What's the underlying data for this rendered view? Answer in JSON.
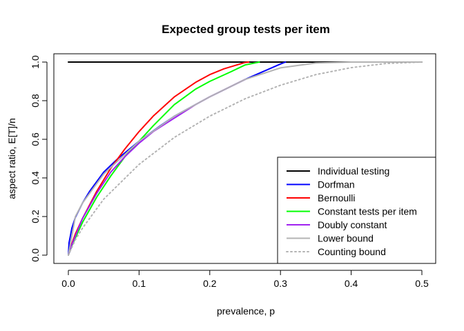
{
  "chart_data": {
    "type": "line",
    "title": "Expected group tests per item",
    "xlabel": "prevalence, p",
    "ylabel": "aspect ratio, E[T]/n",
    "xlim": [
      0,
      0.5
    ],
    "ylim": [
      0,
      1
    ],
    "xticks": [
      0.0,
      0.1,
      0.2,
      0.3,
      0.4,
      0.5
    ],
    "yticks": [
      0.0,
      0.2,
      0.4,
      0.6,
      0.8,
      1.0
    ],
    "xtick_labels": [
      "0.0",
      "0.1",
      "0.2",
      "0.3",
      "0.4",
      "0.5"
    ],
    "ytick_labels": [
      "0.0",
      "0.2",
      "0.4",
      "0.6",
      "0.8",
      "1.0"
    ],
    "grid": false,
    "legend_position": "bottom-right",
    "series": [
      {
        "name": "Individual testing",
        "color": "#000000",
        "dash": "solid",
        "x": [
          0.0,
          0.5
        ],
        "y": [
          1.0,
          1.0
        ]
      },
      {
        "name": "Dorfman",
        "color": "#0000ff",
        "dash": "solid",
        "x": [
          0.0,
          0.001,
          0.005,
          0.01,
          0.02,
          0.03,
          0.05,
          0.07,
          0.1,
          0.13,
          0.15,
          0.2,
          0.25,
          0.3,
          0.307
        ],
        "y": [
          0.0,
          0.064,
          0.14,
          0.196,
          0.27,
          0.33,
          0.43,
          0.5,
          0.59,
          0.67,
          0.72,
          0.82,
          0.91,
          0.99,
          1.0
        ]
      },
      {
        "name": "Bernoulli",
        "color": "#ff0000",
        "dash": "solid",
        "x": [
          0.0,
          0.005,
          0.01,
          0.02,
          0.04,
          0.06,
          0.08,
          0.1,
          0.12,
          0.15,
          0.18,
          0.2,
          0.22,
          0.25,
          0.255
        ],
        "y": [
          0.0,
          0.06,
          0.11,
          0.19,
          0.33,
          0.45,
          0.55,
          0.64,
          0.72,
          0.82,
          0.895,
          0.935,
          0.965,
          0.998,
          1.0
        ]
      },
      {
        "name": "Constant tests per item",
        "color": "#00ff00",
        "dash": "solid",
        "x": [
          0.0,
          0.005,
          0.01,
          0.02,
          0.04,
          0.06,
          0.08,
          0.1,
          0.12,
          0.15,
          0.18,
          0.2,
          0.23,
          0.25,
          0.27
        ],
        "y": [
          0.0,
          0.05,
          0.09,
          0.17,
          0.3,
          0.41,
          0.51,
          0.59,
          0.67,
          0.78,
          0.86,
          0.9,
          0.95,
          0.985,
          1.0
        ]
      },
      {
        "name": "Doubly constant",
        "color": "#a020f0",
        "dash": "solid",
        "x": [
          0.0,
          0.005,
          0.01,
          0.02,
          0.04,
          0.06,
          0.08,
          0.1,
          0.12,
          0.15,
          0.18,
          0.2,
          0.25
        ],
        "y": [
          0.0,
          0.055,
          0.1,
          0.19,
          0.32,
          0.43,
          0.51,
          0.58,
          0.64,
          0.71,
          0.78,
          0.82,
          0.91
        ]
      },
      {
        "name": "Lower bound",
        "color": "#b3b3b3",
        "dash": "solid",
        "x": [
          0.0,
          0.01,
          0.02,
          0.05,
          0.1,
          0.15,
          0.2,
          0.25,
          0.3,
          0.35,
          0.4,
          0.45,
          0.5
        ],
        "y": [
          0.0,
          0.2,
          0.27,
          0.42,
          0.59,
          0.72,
          0.82,
          0.91,
          0.97,
          0.995,
          1.0,
          1.0,
          1.0
        ]
      },
      {
        "name": "Counting bound",
        "color": "#b3b3b3",
        "dash": "dotted",
        "x": [
          0.0,
          0.01,
          0.02,
          0.05,
          0.1,
          0.15,
          0.2,
          0.25,
          0.3,
          0.35,
          0.4,
          0.45,
          0.5
        ],
        "y": [
          0.0,
          0.08,
          0.14,
          0.29,
          0.47,
          0.61,
          0.72,
          0.81,
          0.88,
          0.935,
          0.971,
          0.993,
          1.0
        ]
      }
    ]
  }
}
